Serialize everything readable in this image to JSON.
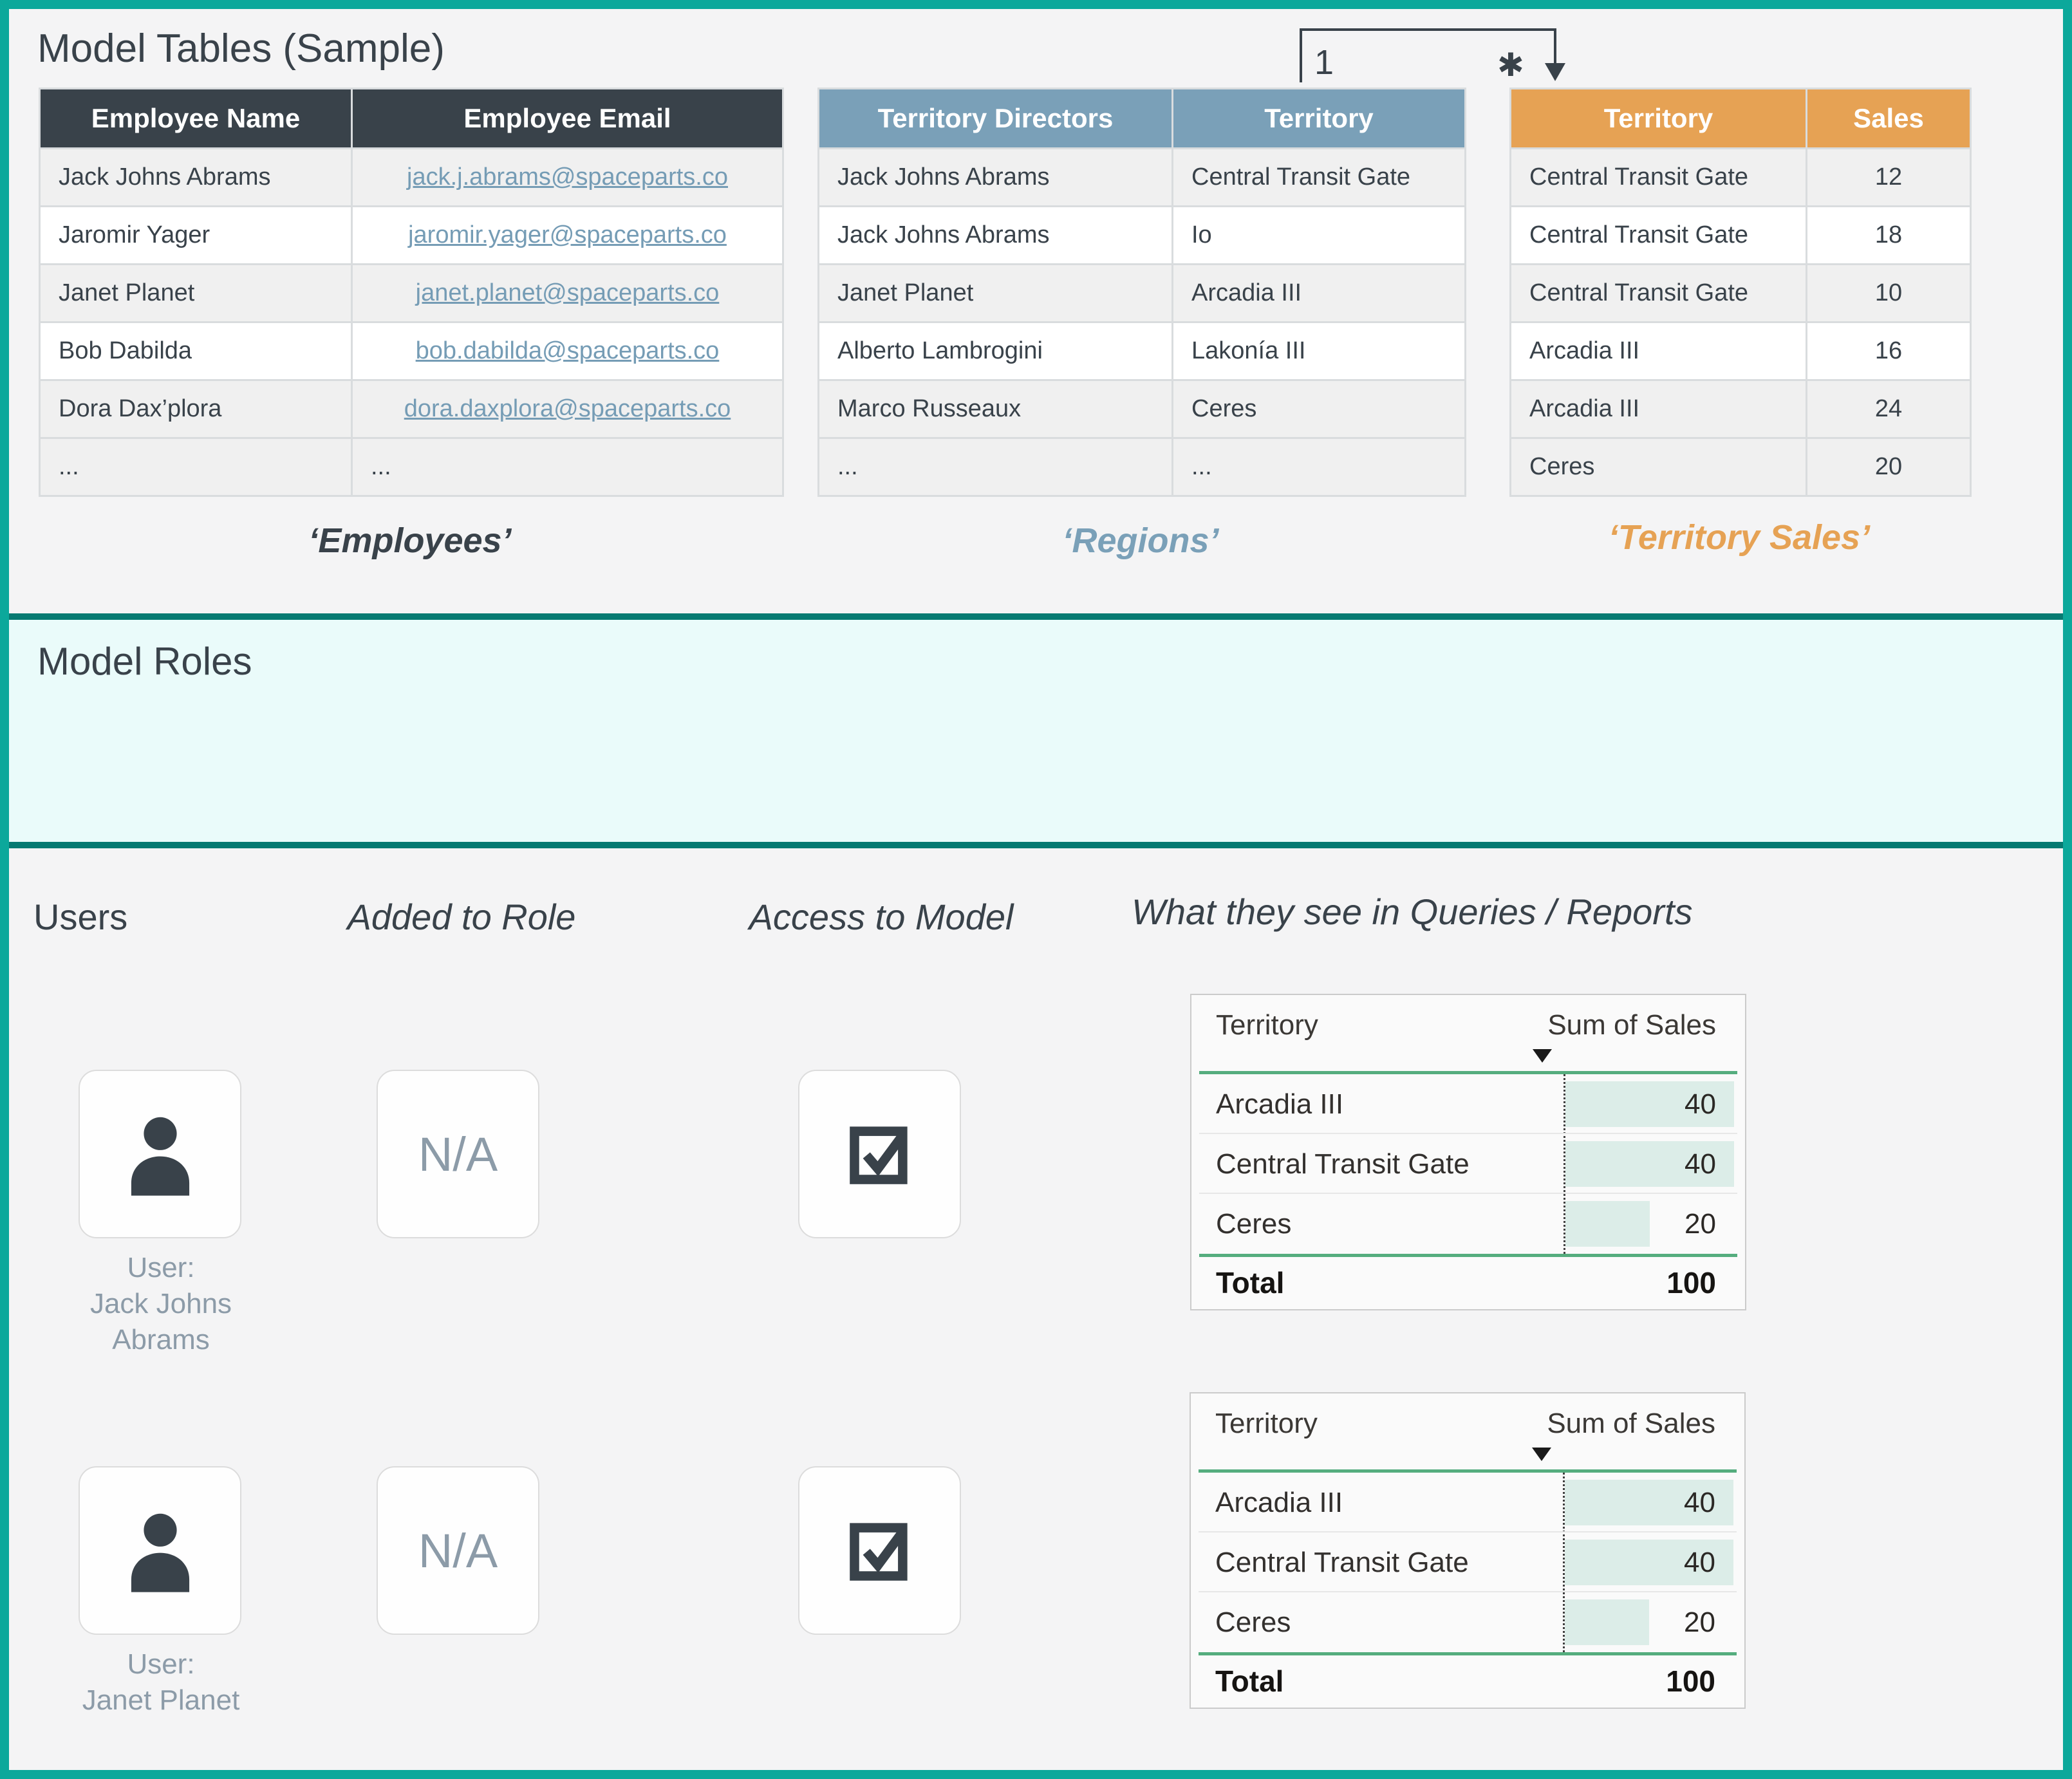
{
  "titles": {
    "model_tables": "Model Tables (Sample)",
    "model_roles": "Model Roles"
  },
  "sample_tables": {
    "employees": {
      "caption": "‘Employees’",
      "headers": [
        "Employee Name",
        "Employee Email"
      ],
      "rows": [
        [
          "Jack Johns Abrams",
          "jack.j.abrams@spaceparts.co"
        ],
        [
          "Jaromir Yager",
          "jaromir.yager@spaceparts.co"
        ],
        [
          "Janet Planet",
          "janet.planet@spaceparts.co"
        ],
        [
          "Bob Dabilda",
          "bob.dabilda@spaceparts.co"
        ],
        [
          "Dora Dax’plora",
          "dora.daxplora@spaceparts.co"
        ],
        [
          "...",
          "..."
        ]
      ]
    },
    "regions": {
      "caption": "‘Regions’",
      "headers": [
        "Territory Directors",
        "Territory"
      ],
      "rows": [
        [
          "Jack Johns Abrams",
          "Central Transit Gate"
        ],
        [
          "Jack Johns Abrams",
          "Io"
        ],
        [
          "Janet Planet",
          "Arcadia III"
        ],
        [
          "Alberto Lambrogini",
          "Lakonía III"
        ],
        [
          "Marco Russeaux",
          "Ceres"
        ],
        [
          "...",
          "..."
        ]
      ]
    },
    "territory_sales": {
      "caption": "‘Territory Sales’",
      "headers": [
        "Territory",
        "Sales"
      ],
      "rows": [
        [
          "Central Transit Gate",
          "12"
        ],
        [
          "Central Transit Gate",
          "18"
        ],
        [
          "Central Transit Gate",
          "10"
        ],
        [
          "Arcadia III",
          "16"
        ],
        [
          "Arcadia III",
          "24"
        ],
        [
          "Ceres",
          "20"
        ]
      ]
    }
  },
  "relationship": {
    "one_label": "1",
    "many_label": "✱"
  },
  "bottom": {
    "headers": {
      "users": "Users",
      "added_to_role": "Added to Role",
      "access_to_model": "Access to Model",
      "reports": "What they see in Queries / Reports"
    },
    "user1": {
      "label_line1": "User:",
      "label_line2": "Jack Johns",
      "label_line3": "Abrams",
      "role": "N/A"
    },
    "user2": {
      "label_line1": "User:",
      "label_line2": "Janet Planet",
      "role": "N/A"
    }
  },
  "report_table": {
    "type": "table",
    "col_territory": "Territory",
    "col_sales": "Sum of Sales",
    "rows": [
      {
        "territory": "Arcadia III",
        "sales": 40
      },
      {
        "territory": "Central Transit Gate",
        "sales": 40
      },
      {
        "territory": "Ceres",
        "sales": 20
      }
    ],
    "max_sales": 40,
    "total_label": "Total",
    "total": 100
  },
  "colors": {
    "frame_teal": "#0CA89B",
    "roles_border_teal": "#077A72",
    "roles_bg": "#EAFBFA",
    "header_dark": "#39424A",
    "header_blue": "#7AA0B8",
    "header_orange": "#E6A254",
    "link_blue": "#759CB5",
    "report_green_line": "#55AD7E",
    "report_bar_fill": "#DCEDE8",
    "muted_label": "#8C9BA8"
  }
}
